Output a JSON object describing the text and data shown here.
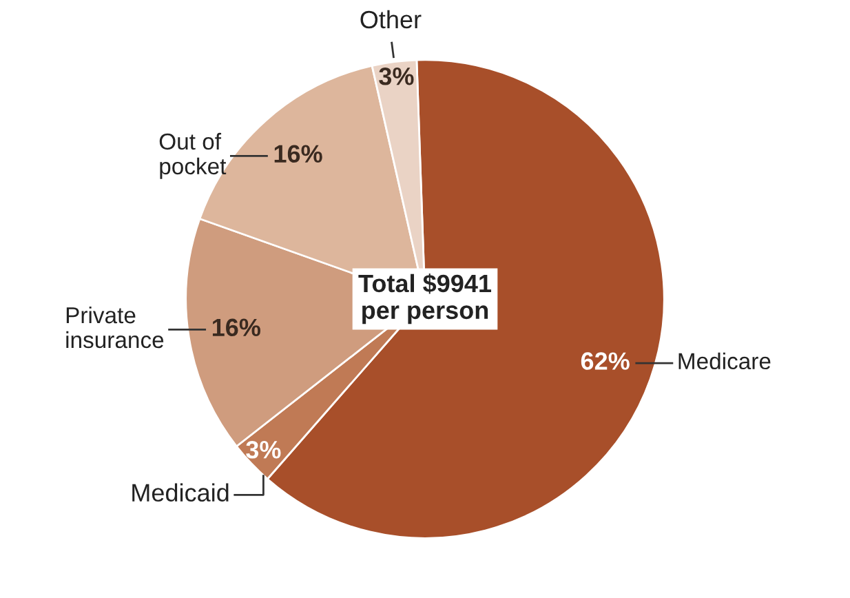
{
  "chart_data": {
    "type": "pie",
    "categories": [
      "Medicare",
      "Medicaid",
      "Private\ninsurance",
      "Out of\npocket",
      "Other"
    ],
    "values": [
      62,
      3,
      16,
      16,
      3
    ],
    "colors": [
      "#a84f2a",
      "#c07a55",
      "#cf9c7e",
      "#ddb69c",
      "#ead3c5"
    ],
    "value_labels": [
      "62%",
      "3%",
      "16%",
      "16%",
      "3%"
    ],
    "annotations": [
      "Total $9941\nper person"
    ]
  }
}
